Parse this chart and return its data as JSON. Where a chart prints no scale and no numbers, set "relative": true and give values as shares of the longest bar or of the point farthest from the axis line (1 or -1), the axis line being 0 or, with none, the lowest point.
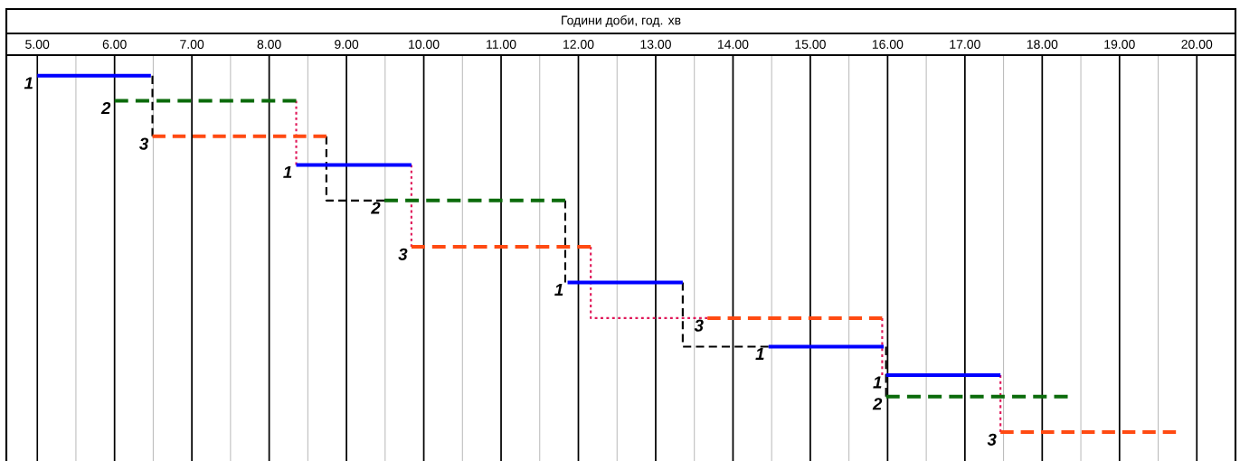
{
  "chart_data": {
    "type": "line",
    "relative": true,
    "xlabel": "Години доби, год. хв",
    "grid": "x",
    "xlim": [
      4.6,
      20.5
    ],
    "xticks": [
      {
        "value": 5,
        "label": "5.00"
      },
      {
        "value": 5.5,
        "label": null
      },
      {
        "value": 6,
        "label": "6.00"
      },
      {
        "value": 6.5,
        "label": null
      },
      {
        "value": 7,
        "label": "7.00"
      },
      {
        "value": 7.5,
        "label": null
      },
      {
        "value": 8,
        "label": "8.00"
      },
      {
        "value": 8.5,
        "label": null
      },
      {
        "value": 9,
        "label": "9.00"
      },
      {
        "value": 9.5,
        "label": null
      },
      {
        "value": 10,
        "label": "10.00"
      },
      {
        "value": 10.5,
        "label": null
      },
      {
        "value": 11,
        "label": "11.00"
      },
      {
        "value": 11.5,
        "label": null
      },
      {
        "value": 12,
        "label": "12.00"
      },
      {
        "value": 12.5,
        "label": null
      },
      {
        "value": 13,
        "label": "13.00"
      },
      {
        "value": 13.5,
        "label": null
      },
      {
        "value": 14,
        "label": "14.00"
      },
      {
        "value": 14.5,
        "label": null
      },
      {
        "value": 15,
        "label": "15.00"
      },
      {
        "value": 15.5,
        "label": null
      },
      {
        "value": 16,
        "label": "16.00"
      },
      {
        "value": 16.5,
        "label": null
      },
      {
        "value": 17,
        "label": "17.00"
      },
      {
        "value": 17.5,
        "label": null
      },
      {
        "value": 18,
        "label": "18.00"
      },
      {
        "value": 18.5,
        "label": null
      },
      {
        "value": 19,
        "label": "19.00"
      },
      {
        "value": 19.5,
        "label": null
      },
      {
        "value": 20,
        "label": "20.00"
      }
    ],
    "series": [
      {
        "color": "#000000",
        "line_style": "dashed",
        "x": [
          6.49,
          6.49
        ],
        "values": [
          1,
          0.83
        ]
      },
      {
        "color": "#e0195a",
        "line_style": "dotted",
        "x": [
          8.35,
          8.35
        ],
        "values": [
          0.93,
          0.75
        ]
      },
      {
        "color": "#000000",
        "line_style": "dashed",
        "x": [
          8.74,
          8.74,
          9.49
        ],
        "values": [
          0.83,
          0.65,
          0.65
        ]
      },
      {
        "color": "#e0195a",
        "line_style": "dotted",
        "x": [
          9.84,
          9.84
        ],
        "values": [
          0.75,
          0.52
        ]
      },
      {
        "color": "#000000",
        "line_style": "dashed",
        "x": [
          11.83,
          11.83
        ],
        "values": [
          0.65,
          0.42
        ]
      },
      {
        "color": "#e0195a",
        "line_style": "dotted",
        "x": [
          12.16,
          12.16,
          13.67
        ],
        "values": [
          0.52,
          0.32,
          0.32
        ]
      },
      {
        "color": "#000000",
        "line_style": "dashed",
        "x": [
          13.35,
          13.35,
          14.46
        ],
        "values": [
          0.42,
          0.24,
          0.24
        ]
      },
      {
        "color": "#e0195a",
        "line_style": "dotted",
        "x": [
          15.93,
          15.93
        ],
        "values": [
          0.32,
          0.16
        ]
      },
      {
        "color": "#000000",
        "line_style": "dashed",
        "x": [
          15.98,
          15.98
        ],
        "values": [
          0.24,
          0.1
        ]
      },
      {
        "color": "#e0195a",
        "line_style": "dotted",
        "x": [
          17.46,
          17.46
        ],
        "values": [
          0.16,
          0
        ]
      },
      {
        "name": "1",
        "color": "#0000ff",
        "line_style": "solid",
        "x": [
          5.0,
          6.47
        ],
        "values": [
          1,
          1
        ]
      },
      {
        "name": "2",
        "color": "#0b6b0b",
        "line_style": "dashed",
        "x": [
          6.0,
          8.35
        ],
        "values": [
          0.93,
          0.93
        ]
      },
      {
        "name": "3",
        "color": "#ff4a12",
        "line_style": "dashed",
        "x": [
          6.49,
          8.74
        ],
        "values": [
          0.83,
          0.83
        ]
      },
      {
        "name": "1",
        "color": "#0000ff",
        "line_style": "solid",
        "x": [
          8.35,
          9.84
        ],
        "values": [
          0.75,
          0.75
        ]
      },
      {
        "name": "2",
        "color": "#0b6b0b",
        "line_style": "dashed",
        "x": [
          9.49,
          11.83
        ],
        "values": [
          0.65,
          0.65
        ]
      },
      {
        "name": "3",
        "color": "#ff4a12",
        "line_style": "dashed",
        "x": [
          9.84,
          12.16
        ],
        "values": [
          0.52,
          0.52
        ]
      },
      {
        "name": "1",
        "color": "#0000ff",
        "line_style": "solid",
        "x": [
          11.86,
          13.35
        ],
        "values": [
          0.42,
          0.42
        ]
      },
      {
        "name": "3",
        "color": "#ff4a12",
        "line_style": "dashed",
        "x": [
          13.67,
          15.93
        ],
        "values": [
          0.32,
          0.32
        ]
      },
      {
        "name": "1",
        "color": "#0000ff",
        "line_style": "solid",
        "x": [
          14.46,
          15.95
        ],
        "values": [
          0.24,
          0.24
        ]
      },
      {
        "name": "1",
        "color": "#0000ff",
        "line_style": "solid",
        "x": [
          15.98,
          17.46
        ],
        "values": [
          0.16,
          0.16
        ]
      },
      {
        "name": "2",
        "color": "#0b6b0b",
        "line_style": "dashed",
        "x": [
          15.98,
          18.33
        ],
        "values": [
          0.1,
          0.1
        ]
      },
      {
        "name": "3",
        "color": "#ff4a12",
        "line_style": "dashed",
        "x": [
          17.46,
          19.73
        ],
        "values": [
          0,
          0
        ]
      }
    ]
  }
}
